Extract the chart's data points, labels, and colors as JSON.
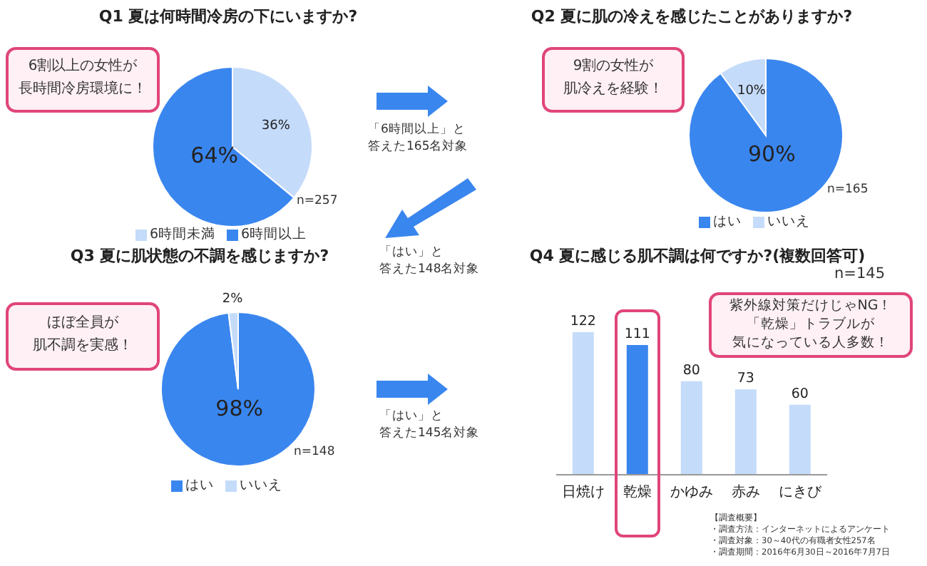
{
  "chart_data": [
    {
      "type": "pie",
      "title": "Q1 夏は何時間冷房の下にいますか?",
      "categories": [
        "6時間未満",
        "6時間以上"
      ],
      "values": [
        36,
        64
      ],
      "colors": [
        "#c5dbfa",
        "#3a86ef"
      ],
      "value_labels": [
        "36%",
        "64%"
      ],
      "legend": "bottom",
      "annotations": [
        "6割以上の女性が",
        "長時間冷房環境に！",
        "n=257"
      ]
    },
    {
      "type": "pie",
      "title": "Q2 夏に肌の冷えを感じたことがありますか?",
      "categories": [
        "はい",
        "いいえ"
      ],
      "values": [
        90,
        10
      ],
      "colors": [
        "#3a86ef",
        "#c5dbfa"
      ],
      "value_labels": [
        "90%",
        "10%"
      ],
      "legend": "bottom",
      "annotations": [
        "9割の女性が",
        "肌冷えを経験！",
        "n=165",
        "「6時間以上」と",
        "答えた165名対象"
      ]
    },
    {
      "type": "pie",
      "title": "Q3 夏に肌状態の不調を感じますか?",
      "categories": [
        "はい",
        "いいえ"
      ],
      "values": [
        98,
        2
      ],
      "colors": [
        "#3a86ef",
        "#c5dbfa"
      ],
      "value_labels": [
        "98%",
        "2%"
      ],
      "legend": "bottom",
      "annotations": [
        "ほぼ全員が",
        "肌不調を実感！",
        "n=148",
        "「はい」と",
        "答えた148名対象"
      ]
    },
    {
      "type": "bar",
      "title": "Q4 夏に感じる肌不調は何ですか?(複数回答可)",
      "categories": [
        "日焼け",
        "乾燥",
        "かゆみ",
        "赤み",
        "にきび"
      ],
      "values": [
        122,
        111,
        80,
        73,
        60
      ],
      "colors": [
        "#c5dbfa",
        "#3a86ef",
        "#c5dbfa",
        "#c5dbfa",
        "#c5dbfa"
      ],
      "data_labels": true,
      "tick_labels": "x",
      "annotations": [
        "n=145",
        "紫外線対策だけじゃNG！",
        "「乾燥」トラブルが",
        "気になっている人多数！",
        "「はい」と",
        "答えた145名対象",
        "【調査概要】",
        "・調査方法：インターネットによるアンケート",
        "・調査対象：30～40代の有職者女性257名",
        "・調査期間：2016年6月30日～2016年7月7日"
      ]
    }
  ]
}
